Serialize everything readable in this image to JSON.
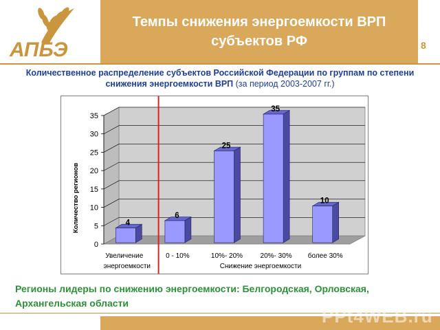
{
  "header": {
    "logo_text": "АПБЭ",
    "title": "Темпы снижения энергоемкости ВРП субъектов РФ",
    "page_number": "8"
  },
  "subtitle": {
    "bold": "Количественное распределение субъектов Российской Федерации по группам по степени снижения энергоемкости ВРП",
    "normal": " (за период 2003-2007 гг.)"
  },
  "chart_data": {
    "type": "bar",
    "categories": [
      "Увеличение энергоемкости",
      "0 - 10%",
      "10%- 20%",
      "20%- 30%",
      "более 30%"
    ],
    "values": [
      4,
      6,
      25,
      35,
      10
    ],
    "title": "",
    "xlabel": "Снижение энергоемкости",
    "ylabel": "Количество регионов",
    "ylim": [
      0,
      35
    ],
    "yticks": [
      0,
      5,
      10,
      15,
      20,
      25,
      30,
      35
    ],
    "grid": true,
    "bar_color": "#9999ff",
    "divider_color": "#e02020"
  },
  "footer": {
    "text": "Регионы лидеры по снижению энергоемкости: Белгородская, Орловская, Архангельская области"
  },
  "watermark": "PPt4WEB.ru"
}
